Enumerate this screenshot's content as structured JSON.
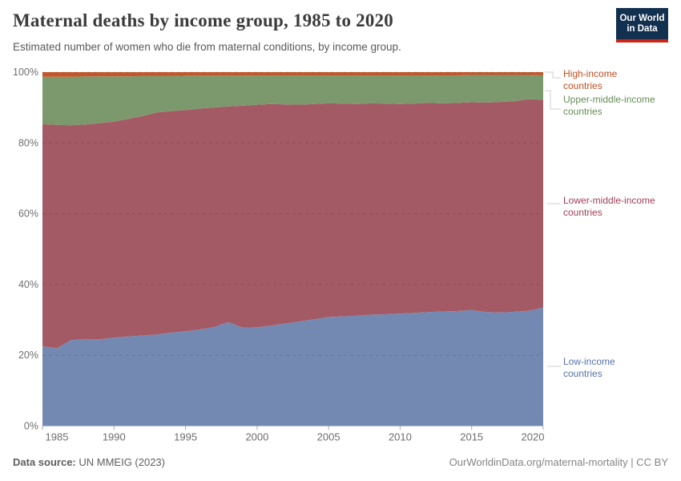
{
  "header": {
    "title": "Maternal deaths by income group, 1985 to 2020",
    "subtitle": "Estimated number of women who die from maternal conditions, by income group.",
    "logo": {
      "line1": "Our World",
      "line2": "in Data",
      "bg_color": "#12304f",
      "bar_color": "#cf2318"
    }
  },
  "footer": {
    "source_label": "Data source:",
    "source_value": " UN MMEIG (2023)",
    "right_text": "OurWorldinData.org/maternal-mortality | CC BY"
  },
  "chart_data": {
    "type": "area",
    "stacked": true,
    "normalized_percent": true,
    "title": "Maternal deaths by income group, 1985 to 2020",
    "xlabel": "",
    "ylabel": "",
    "xlim": [
      1985,
      2020
    ],
    "ylim": [
      0,
      100
    ],
    "grid": "dashed-horizontal",
    "legend_position": "right",
    "x": [
      1985,
      1986,
      1987,
      1988,
      1989,
      1990,
      1991,
      1992,
      1993,
      1994,
      1995,
      1996,
      1997,
      1998,
      1999,
      2000,
      2001,
      2002,
      2003,
      2004,
      2005,
      2006,
      2007,
      2008,
      2009,
      2010,
      2011,
      2012,
      2013,
      2014,
      2015,
      2016,
      2017,
      2018,
      2019,
      2020
    ],
    "xticks": [
      1985,
      1990,
      1995,
      2000,
      2005,
      2010,
      2015,
      2020
    ],
    "yticks": [
      0,
      20,
      40,
      60,
      80,
      100
    ],
    "ytick_labels": [
      "0%",
      "20%",
      "40%",
      "60%",
      "80%",
      "100%"
    ],
    "unit": "% of maternal deaths",
    "series": [
      {
        "name": "Low-income countries",
        "color": "#7489b2",
        "text_color": "#5573aa",
        "values": [
          22.6,
          22.0,
          24.3,
          24.6,
          24.5,
          25.0,
          25.3,
          25.6,
          25.9,
          26.4,
          26.8,
          27.3,
          28.0,
          29.4,
          27.8,
          27.9,
          28.4,
          29.0,
          29.6,
          30.2,
          30.8,
          31.0,
          31.2,
          31.5,
          31.6,
          31.8,
          32.0,
          32.2,
          32.4,
          32.5,
          32.8,
          32.2,
          32.1,
          32.3,
          32.6,
          33.5
        ]
      },
      {
        "name": "Lower-middle-income countries",
        "color": "#a45a64",
        "text_color": "#9e4058",
        "values": [
          62.7,
          63.1,
          60.7,
          60.6,
          61.1,
          61.0,
          61.5,
          62.0,
          62.7,
          62.6,
          62.5,
          62.4,
          62.0,
          60.9,
          62.7,
          62.9,
          62.6,
          61.9,
          61.2,
          60.8,
          60.4,
          60.1,
          59.8,
          59.7,
          59.5,
          59.2,
          59.1,
          59.1,
          58.8,
          58.8,
          58.7,
          59.2,
          59.5,
          59.5,
          59.8,
          58.7
        ]
      },
      {
        "name": "Upper-middle-income countries",
        "color": "#7c996d",
        "text_color": "#668c57",
        "values": [
          13.4,
          13.6,
          13.7,
          13.6,
          13.2,
          12.8,
          12.0,
          11.3,
          10.3,
          9.9,
          9.7,
          9.3,
          9.0,
          8.7,
          8.5,
          8.3,
          8.1,
          8.2,
          8.3,
          8.1,
          7.9,
          8.0,
          8.1,
          7.9,
          8.0,
          8.1,
          8.0,
          7.8,
          7.9,
          7.8,
          7.7,
          7.8,
          7.6,
          7.4,
          6.8,
          6.9
        ]
      },
      {
        "name": "High-income countries",
        "color": "#c3572c",
        "text_color": "#c14e22",
        "values": [
          1.3,
          1.3,
          1.3,
          1.2,
          1.2,
          1.2,
          1.2,
          1.1,
          1.1,
          1.1,
          1.0,
          1.0,
          1.0,
          1.0,
          1.0,
          0.9,
          0.9,
          0.9,
          0.9,
          0.9,
          0.9,
          0.9,
          0.9,
          0.9,
          0.9,
          0.9,
          0.9,
          0.9,
          0.9,
          0.9,
          0.8,
          0.8,
          0.8,
          0.8,
          0.8,
          0.9
        ]
      }
    ]
  },
  "legend": {
    "items": [
      {
        "label": "High-income countries",
        "series_index": 3
      },
      {
        "label": "Upper-middle-income countries",
        "series_index": 2
      },
      {
        "label": "Lower-middle-income countries",
        "series_index": 1
      },
      {
        "label": "Low-income countries",
        "series_index": 0
      }
    ]
  }
}
